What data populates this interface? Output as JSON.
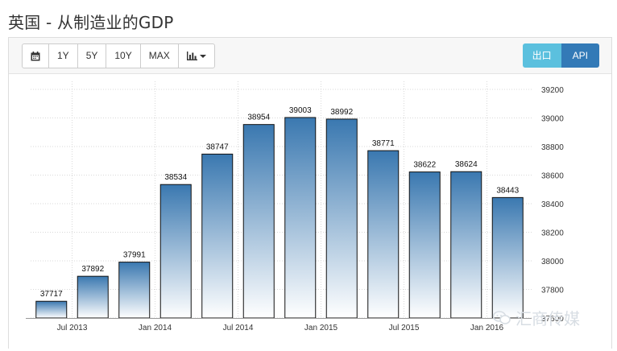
{
  "page": {
    "title": "英国 - 从制造业的GDP"
  },
  "toolbar": {
    "calendar_icon": "calendar-icon",
    "range_buttons": [
      "1Y",
      "5Y",
      "10Y",
      "MAX"
    ],
    "chart_type_icon": "bar-chart-icon"
  },
  "export": {
    "export_label": "出口",
    "api_label": "API"
  },
  "watermark": {
    "text": "汇商传媒"
  },
  "colors": {
    "bar_top": "#3a78b0",
    "bar_bottom": "#ffffff",
    "export_button": "#5bc0de",
    "api_button": "#337ab7"
  },
  "chart_data": {
    "type": "bar",
    "categories": [
      "",
      "",
      "",
      "",
      "",
      "",
      "",
      "",
      "",
      "",
      "",
      ""
    ],
    "x_tick_labels": [
      "Jul 2013",
      "Jan 2014",
      "Jul 2014",
      "Jan 2015",
      "Jul 2015",
      "Jan 2016"
    ],
    "x_tick_positions": [
      1,
      3,
      5,
      7,
      9,
      11
    ],
    "values": [
      37717,
      37892,
      37991,
      38534,
      38747,
      38954,
      39003,
      38992,
      38771,
      38622,
      38624,
      38443
    ],
    "data_labels": [
      "37717",
      "37892",
      "37991",
      "38534",
      "38747",
      "38954",
      "39003",
      "38992",
      "38771",
      "38622",
      "38624",
      "38443"
    ],
    "y_ticks": [
      37600,
      37800,
      38000,
      38200,
      38400,
      38600,
      38800,
      39000,
      39200
    ],
    "ylim": [
      37600,
      39200
    ],
    "y_axis_side": "right",
    "grid": true,
    "legend": "none",
    "title": "",
    "xlabel": "",
    "ylabel": ""
  }
}
